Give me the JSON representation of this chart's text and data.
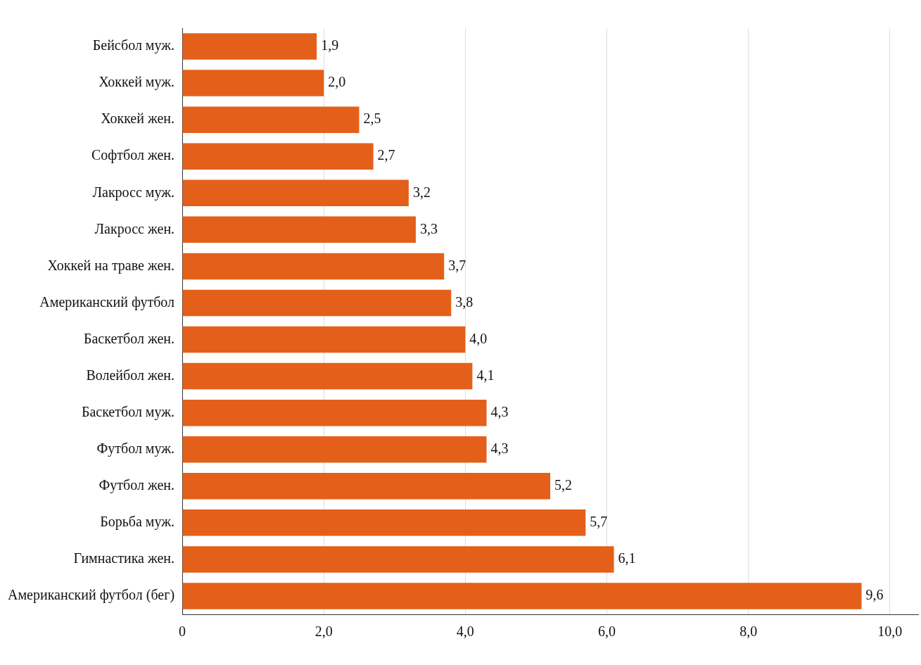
{
  "chart_data": {
    "type": "bar",
    "orientation": "horizontal",
    "categories": [
      "Бейсбол муж.",
      "Хоккей муж.",
      "Хоккей жен.",
      "Софтбол жен.",
      "Лакросс муж.",
      "Лакросс жен.",
      "Хоккей на траве жен.",
      "Американский футбол",
      "Баскетбол жен.",
      "Волейбол жен.",
      "Баскетбол муж.",
      "Футбол муж.",
      "Футбол жен.",
      "Борьба муж.",
      "Гимнастика жен.",
      "Американский футбол (бег)"
    ],
    "values": [
      1.9,
      2.0,
      2.5,
      2.7,
      3.2,
      3.3,
      3.7,
      3.8,
      4.0,
      4.1,
      4.3,
      4.3,
      5.2,
      5.7,
      6.1,
      9.6
    ],
    "value_labels": [
      "1,9",
      "2,0",
      "2,5",
      "2,7",
      "3,2",
      "3,3",
      "3,7",
      "3,8",
      "4,0",
      "4,1",
      "4,3",
      "4,3",
      "5,2",
      "5,7",
      "6,1",
      "9,6"
    ],
    "color": "#e4601a",
    "xlim": [
      0,
      10.4
    ],
    "xticks": [
      {
        "value": 0,
        "label": "0"
      },
      {
        "value": 2,
        "label": "2,0"
      },
      {
        "value": 4,
        "label": "4,0"
      },
      {
        "value": 6,
        "label": "6,0"
      },
      {
        "value": 8,
        "label": "8,0"
      },
      {
        "value": 10,
        "label": "10,0"
      }
    ],
    "grid": "x"
  }
}
